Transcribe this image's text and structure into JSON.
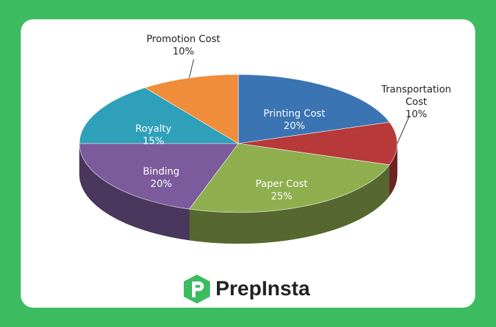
{
  "chart_data": {
    "type": "pie3d",
    "categories": [
      "Printing Cost",
      "Transportation Cost",
      "Paper Cost",
      "Binding",
      "Royalty",
      "Promotion Cost"
    ],
    "values": [
      20,
      10,
      25,
      20,
      15,
      10
    ],
    "value_labels": [
      "20%",
      "10%",
      "25%",
      "20%",
      "15%",
      "10%"
    ],
    "colors": [
      "#3a74b2",
      "#b8393a",
      "#8fae4e",
      "#7b5b9b",
      "#2fa0b9",
      "#ef8d3b"
    ]
  },
  "logo": "PrepInsta"
}
